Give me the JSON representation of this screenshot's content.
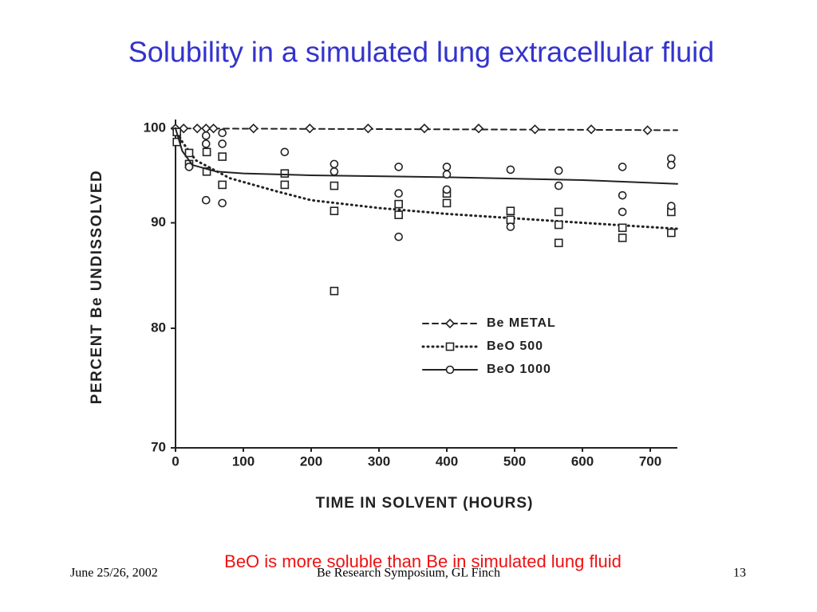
{
  "slide": {
    "title": "Solubility in a simulated lung extracellular fluid",
    "caption": "BeO is more soluble than Be in simulated lung fluid",
    "footer_left": "June 25/26, 2002",
    "footer_center": "Be Research Symposium, GL Finch",
    "footer_right": "13"
  },
  "chart_data": {
    "type": "scatter",
    "xlabel": "TIME IN SOLVENT (HOURS)",
    "ylabel": "PERCENT Be UNDISSOLVED",
    "xlim": [
      0,
      740
    ],
    "ylim": [
      70,
      101
    ],
    "y_log": true,
    "xticks": [
      0,
      100,
      200,
      300,
      400,
      500,
      600,
      700
    ],
    "yticks": [
      70,
      80,
      90,
      100
    ],
    "legend": "center-right",
    "series": [
      {
        "name": "Be METAL",
        "color": "#222222",
        "line_style": "dashed",
        "marker": "diamond",
        "x": [
          0,
          12,
          32,
          45,
          56,
          115,
          198,
          284,
          367,
          447,
          530,
          613,
          696
        ],
        "values": [
          100,
          100,
          100,
          100,
          100,
          100,
          100,
          100,
          100,
          100,
          99.9,
          99.9,
          99.8
        ],
        "fit_x": [
          0,
          200,
          400,
          600,
          740
        ],
        "fit_values": [
          100,
          99.95,
          99.9,
          99.85,
          99.8
        ]
      },
      {
        "name": "BeO 500",
        "color": "#222222",
        "line_style": "dotted",
        "marker": "square",
        "x": [
          2,
          2,
          20,
          20,
          46,
          46,
          69,
          69,
          161,
          161,
          234,
          234,
          234,
          329,
          329,
          400,
          400,
          494,
          494,
          565,
          565,
          565,
          659,
          659,
          731,
          731
        ],
        "values": [
          99.6,
          98.5,
          97.3,
          96.1,
          97.4,
          95.3,
          96.9,
          93.9,
          95.1,
          93.9,
          93.8,
          91.2,
          83.4,
          91.9,
          90.8,
          93.0,
          92.0,
          91.2,
          90.3,
          91.1,
          89.8,
          88.0,
          89.5,
          88.5,
          91.1,
          89.0
        ],
        "fit_x": [
          0,
          10,
          30,
          80,
          150,
          200,
          300,
          400,
          600,
          740
        ],
        "fit_values": [
          100,
          98.5,
          96.5,
          94.6,
          93.2,
          92.3,
          91.5,
          90.9,
          90.0,
          89.4
        ]
      },
      {
        "name": "BeO 1000",
        "color": "#222222",
        "line_style": "solid",
        "marker": "circle",
        "x": [
          20,
          45,
          45,
          45,
          69,
          69,
          69,
          161,
          234,
          234,
          329,
          329,
          329,
          400,
          400,
          400,
          494,
          494,
          565,
          565,
          659,
          659,
          659,
          731,
          731,
          731
        ],
        "values": [
          95.8,
          99.2,
          98.3,
          92.3,
          99.5,
          98.3,
          92.0,
          97.4,
          96.1,
          95.3,
          95.8,
          93.0,
          88.6,
          95.8,
          95.0,
          93.4,
          95.5,
          89.6,
          95.4,
          93.8,
          95.8,
          92.8,
          91.1,
          96.7,
          96.0,
          91.7
        ],
        "fit_x": [
          0,
          10,
          25,
          60,
          100,
          200,
          400,
          600,
          740
        ],
        "fit_values": [
          100,
          97.5,
          96,
          95.3,
          95.1,
          94.9,
          94.7,
          94.4,
          94.0
        ]
      }
    ]
  }
}
